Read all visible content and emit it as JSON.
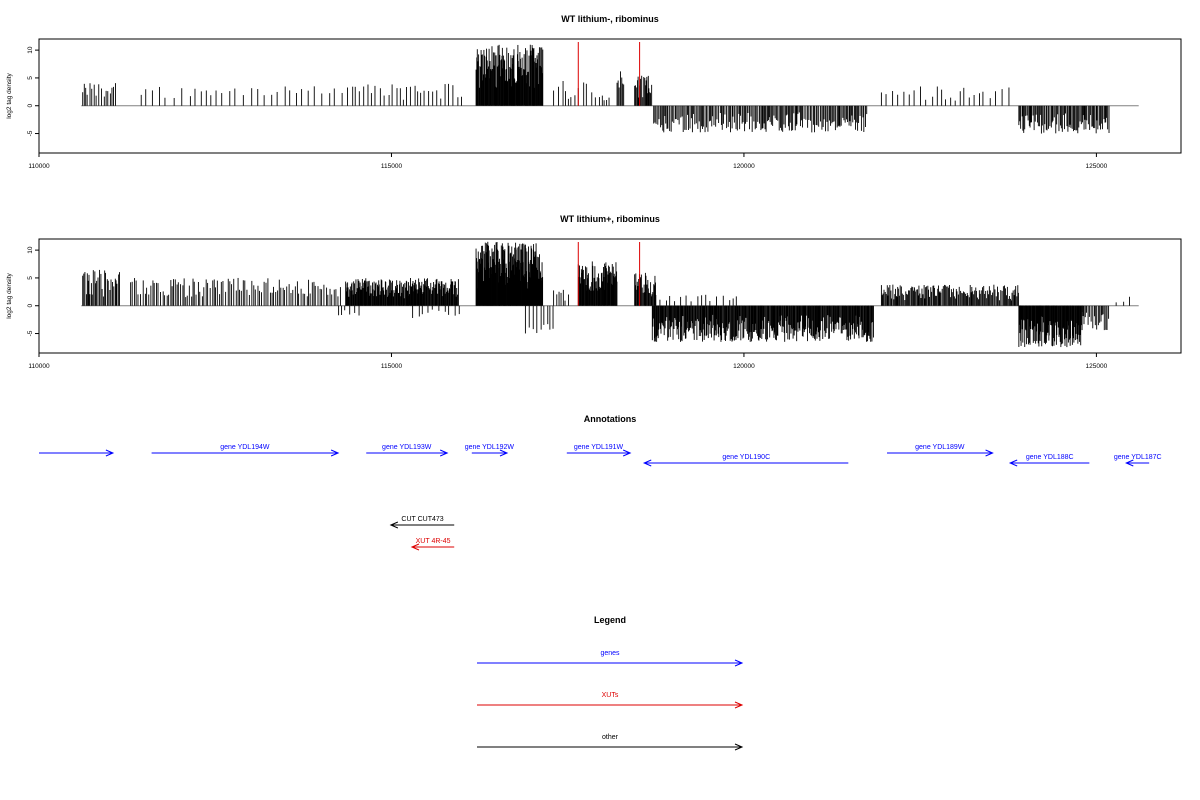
{
  "chart_data": [
    {
      "type": "bar",
      "title": "WT lithium-, ribominus",
      "ylabel": "log2 tag density",
      "xlim": [
        110000,
        126200
      ],
      "ylim": [
        -8.5,
        12
      ],
      "xticks": [
        110000,
        115000,
        120000,
        125000
      ],
      "yticks": [
        -5,
        0,
        5,
        10
      ],
      "grid": false,
      "baseline_range": [
        110600,
        125600
      ],
      "red_markers_x": [
        117650,
        118520
      ],
      "segments": [
        {
          "start": 110620,
          "end": 111100,
          "step": 30,
          "sign": 1,
          "max": 4.5,
          "seed": 1
        },
        {
          "start": 111450,
          "end": 114200,
          "step": 95,
          "sign": 1,
          "max": 3.5,
          "seed": 2
        },
        {
          "start": 114300,
          "end": 116000,
          "step": 55,
          "sign": 1,
          "max": 4.0,
          "seed": 3
        },
        {
          "start": 116200,
          "end": 117150,
          "step": 8,
          "sign": 1,
          "max": 11.0,
          "seed": 4
        },
        {
          "start": 117300,
          "end": 117900,
          "step": 55,
          "sign": 1,
          "max": 4.5,
          "seed": 5
        },
        {
          "start": 117950,
          "end": 118100,
          "step": 35,
          "sign": 1,
          "max": 2.5,
          "seed": 6
        },
        {
          "start": 118200,
          "end": 118300,
          "step": 14,
          "sign": 1,
          "max": 6.5,
          "seed": 7
        },
        {
          "start": 118450,
          "end": 118700,
          "step": 12,
          "sign": 1,
          "max": 5.5,
          "seed": 8
        },
        {
          "start": 118720,
          "end": 121750,
          "step": 18,
          "sign": -1,
          "max": 4.8,
          "seed": 9
        },
        {
          "start": 121950,
          "end": 123850,
          "step": 75,
          "sign": 1,
          "max": 3.5,
          "seed": 10
        },
        {
          "start": 123900,
          "end": 125180,
          "step": 16,
          "sign": -1,
          "max": 5.0,
          "seed": 11
        }
      ]
    },
    {
      "type": "bar",
      "title": "WT lithium+, ribominus",
      "ylabel": "log2 tag density",
      "xlim": [
        110000,
        126200
      ],
      "ylim": [
        -8.5,
        12
      ],
      "xticks": [
        110000,
        115000,
        120000,
        125000
      ],
      "yticks": [
        -5,
        0,
        5,
        10
      ],
      "grid": false,
      "baseline_range": [
        110600,
        125600
      ],
      "red_markers_x": [
        117650,
        118520
      ],
      "segments": [
        {
          "start": 110620,
          "end": 111150,
          "step": 18,
          "sign": 1,
          "max": 6.5,
          "seed": 21
        },
        {
          "start": 111300,
          "end": 114300,
          "step": 28,
          "sign": 1,
          "max": 5.0,
          "seed": 22
        },
        {
          "start": 114250,
          "end": 114600,
          "step": 60,
          "sign": -1,
          "max": 2.0,
          "seed": 23
        },
        {
          "start": 114350,
          "end": 115950,
          "step": 9,
          "sign": 1,
          "max": 5.0,
          "seed": 24
        },
        {
          "start": 115300,
          "end": 116000,
          "step": 70,
          "sign": -1,
          "max": 2.5,
          "seed": 25
        },
        {
          "start": 116200,
          "end": 117150,
          "step": 6,
          "sign": 1,
          "max": 11.5,
          "seed": 26
        },
        {
          "start": 116900,
          "end": 117300,
          "step": 45,
          "sign": -1,
          "max": 5.5,
          "seed": 27
        },
        {
          "start": 117300,
          "end": 117550,
          "step": 40,
          "sign": 1,
          "max": 3.0,
          "seed": 28
        },
        {
          "start": 117650,
          "end": 118200,
          "step": 8,
          "sign": 1,
          "max": 8.0,
          "seed": 29
        },
        {
          "start": 118450,
          "end": 118750,
          "step": 10,
          "sign": 1,
          "max": 6.0,
          "seed": 30
        },
        {
          "start": 118700,
          "end": 121850,
          "step": 10,
          "sign": -1,
          "max": 6.5,
          "seed": 31
        },
        {
          "start": 118750,
          "end": 119900,
          "step": 70,
          "sign": 1,
          "max": 2.0,
          "seed": 32
        },
        {
          "start": 121950,
          "end": 123900,
          "step": 14,
          "sign": 1,
          "max": 3.8,
          "seed": 33
        },
        {
          "start": 123900,
          "end": 124800,
          "step": 8,
          "sign": -1,
          "max": 7.5,
          "seed": 34
        },
        {
          "start": 124800,
          "end": 125180,
          "step": 18,
          "sign": -1,
          "max": 4.5,
          "seed": 35
        },
        {
          "start": 125280,
          "end": 125500,
          "step": 80,
          "sign": 1,
          "max": 2.0,
          "seed": 36
        }
      ]
    }
  ],
  "annotations": {
    "title": "Annotations",
    "features": [
      {
        "label": "",
        "start": 110000,
        "end": 112100,
        "strand": "+",
        "row": 0,
        "type": "gene"
      },
      {
        "label": "gene YDL194W",
        "start": 113200,
        "end": 118500,
        "strand": "+",
        "row": 0,
        "type": "gene"
      },
      {
        "label": "gene YDL193W",
        "start": 119300,
        "end": 121600,
        "strand": "+",
        "row": 0,
        "type": "gene"
      },
      {
        "label": "gene YDL192W",
        "start": 122300,
        "end": 123300,
        "strand": "+",
        "row": 0,
        "type": "gene"
      },
      {
        "label": "gene YDL191W",
        "start": 125000,
        "end": 126800,
        "strand": "+",
        "row": 0,
        "type": "gene"
      },
      {
        "label": "gene YDL190C",
        "start": 127200,
        "end": 133000,
        "strand": "-",
        "row": 1,
        "type": "gene"
      },
      {
        "label": "gene YDL189W",
        "start": 134100,
        "end": 137100,
        "strand": "+",
        "row": 0,
        "type": "gene"
      },
      {
        "label": "gene YDL188C",
        "start": 137600,
        "end": 139850,
        "strand": "-",
        "row": 1,
        "type": "gene"
      },
      {
        "label": "gene YDL187C",
        "start": 140900,
        "end": 141550,
        "strand": "-",
        "row": 1,
        "type": "gene"
      },
      {
        "label": "CUT CUT473",
        "start": 120000,
        "end": 121800,
        "strand": "-",
        "row": 3,
        "type": "other"
      },
      {
        "label": "XUT 4R-45",
        "start": 120600,
        "end": 121800,
        "strand": "-",
        "row": 4,
        "type": "XUT"
      }
    ]
  },
  "legend": {
    "title": "Legend",
    "items": [
      {
        "label": "genes",
        "type": "gene"
      },
      {
        "label": "XUTs",
        "type": "XUT"
      },
      {
        "label": "other",
        "type": "other"
      }
    ]
  },
  "colors": {
    "gene": "#0000ff",
    "XUT": "#dd0000",
    "other": "#000000",
    "signal": "#000000",
    "marker": "#dd0000",
    "baseline": "#808080"
  }
}
